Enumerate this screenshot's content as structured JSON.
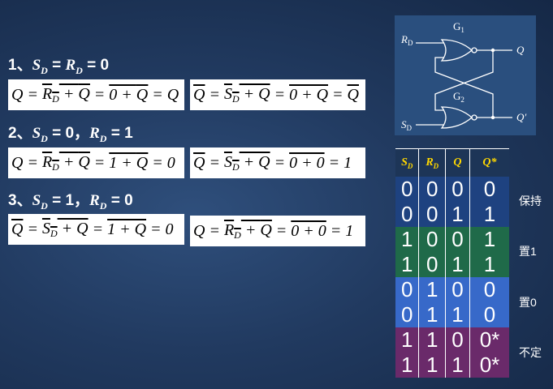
{
  "cases": [
    {
      "num": "1、",
      "cond": "S_D = R_D = 0",
      "eq_left": [
        "Q",
        "=",
        "R_D",
        "+",
        "Q",
        "=",
        "0",
        "+",
        "Q",
        "=",
        "Q"
      ],
      "eq_right": [
        "Q",
        "=",
        "S_D",
        "+",
        "Q",
        "=",
        "0",
        "+",
        "Q",
        "=",
        "Q"
      ]
    },
    {
      "num": "2、",
      "cond": "S_D = 0，R_D = 1",
      "eq_left": [
        "Q",
        "=",
        "R_D",
        "+",
        "Q",
        "=",
        "1",
        "+",
        "Q",
        "=",
        "0"
      ],
      "eq_right": [
        "Q",
        "=",
        "S_D",
        "+",
        "Q",
        "=",
        "0",
        "+",
        "0",
        "=",
        "1"
      ]
    },
    {
      "num": "3、",
      "cond": "S_D = 1，R_D = 0",
      "eq_left": [
        "Q",
        "=",
        "S_D",
        "+",
        "Q",
        "=",
        "1",
        "+",
        "Q",
        "=",
        "0"
      ],
      "eq_right": [
        "Q",
        "=",
        "R_D",
        "+",
        "Q",
        "=",
        "0",
        "+",
        "0",
        "=",
        "1"
      ]
    }
  ],
  "circuit": {
    "gate1": "G",
    "gate1_sub": "1",
    "gate2": "G",
    "gate2_sub": "2",
    "in_top": "R",
    "in_top_sub": "D",
    "in_bottom": "S",
    "in_bottom_sub": "D",
    "out_top": "Q",
    "out_bottom": "Q′"
  },
  "truth_table": {
    "headers": [
      "S_D",
      "R_D",
      "Q",
      "Q*"
    ],
    "rows": [
      [
        "0",
        "0",
        "0",
        "0"
      ],
      [
        "0",
        "0",
        "1",
        "1"
      ],
      [
        "1",
        "0",
        "0",
        "1"
      ],
      [
        "1",
        "0",
        "1",
        "1"
      ],
      [
        "0",
        "1",
        "0",
        "0"
      ],
      [
        "0",
        "1",
        "1",
        "0"
      ],
      [
        "1",
        "1",
        "0",
        "0*"
      ],
      [
        "1",
        "1",
        "1",
        "0*"
      ]
    ],
    "labels": [
      "保持",
      "置1",
      "置0",
      "不定"
    ]
  },
  "colors": {
    "hold": "#1e4280",
    "set": "#1f6a49",
    "reset": "#3769c9",
    "invalid": "#6a2a6a",
    "header": "#ffd800"
  }
}
